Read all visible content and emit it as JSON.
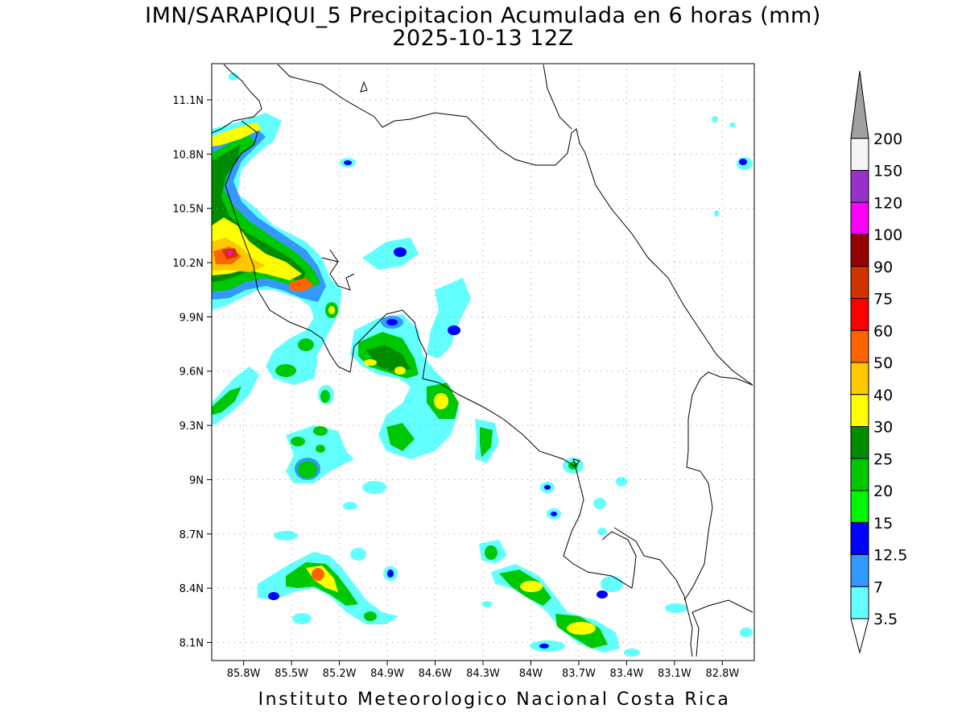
{
  "title": {
    "line1": "IMN/SARAPIQUI_5 Precipitacion Acumulada en 6 horas (mm)",
    "line2": "2025-10-13 12Z"
  },
  "footer": "Instituto Meteorologico Nacional Costa Rica",
  "map": {
    "lon_range": [
      -86.0,
      -82.6
    ],
    "lat_range": [
      8.0,
      11.3
    ],
    "lat_ticks": [
      {
        "value": 8.1,
        "label": "8.1N"
      },
      {
        "value": 8.4,
        "label": "8.4N"
      },
      {
        "value": 8.7,
        "label": "8.7N"
      },
      {
        "value": 9.0,
        "label": "9N"
      },
      {
        "value": 9.3,
        "label": "9.3N"
      },
      {
        "value": 9.6,
        "label": "9.6N"
      },
      {
        "value": 9.9,
        "label": "9.9N"
      },
      {
        "value": 10.2,
        "label": "10.2N"
      },
      {
        "value": 10.5,
        "label": "10.5N"
      },
      {
        "value": 10.8,
        "label": "10.8N"
      },
      {
        "value": 11.1,
        "label": "11.1N"
      }
    ],
    "lon_ticks": [
      {
        "value": -85.8,
        "label": "85.8W"
      },
      {
        "value": -85.5,
        "label": "85.5W"
      },
      {
        "value": -85.2,
        "label": "85.2W"
      },
      {
        "value": -84.9,
        "label": "84.9W"
      },
      {
        "value": -84.6,
        "label": "84.6W"
      },
      {
        "value": -84.3,
        "label": "84.3W"
      },
      {
        "value": -84.0,
        "label": "84W"
      },
      {
        "value": -83.7,
        "label": "83.7W"
      },
      {
        "value": -83.4,
        "label": "83.4W"
      },
      {
        "value": -83.1,
        "label": "83.1W"
      },
      {
        "value": -82.8,
        "label": "82.8W"
      }
    ],
    "grid": true
  },
  "legend": {
    "levels": [
      "3.5",
      "7",
      "12.5",
      "15",
      "20",
      "25",
      "30",
      "40",
      "50",
      "60",
      "75",
      "90",
      "100",
      "120",
      "150",
      "200"
    ],
    "colors": [
      "#63ffff",
      "#3399ff",
      "#0000ff",
      "#00f500",
      "#00c800",
      "#008c00",
      "#ffff00",
      "#ffc800",
      "#ff6400",
      "#ff0000",
      "#d23200",
      "#960000",
      "#ff00ff",
      "#9632c8",
      "#f5f5f5",
      "#a0a0a0"
    ],
    "top_arrow": "max-arrow",
    "bottom_arrow": "min-arrow"
  }
}
